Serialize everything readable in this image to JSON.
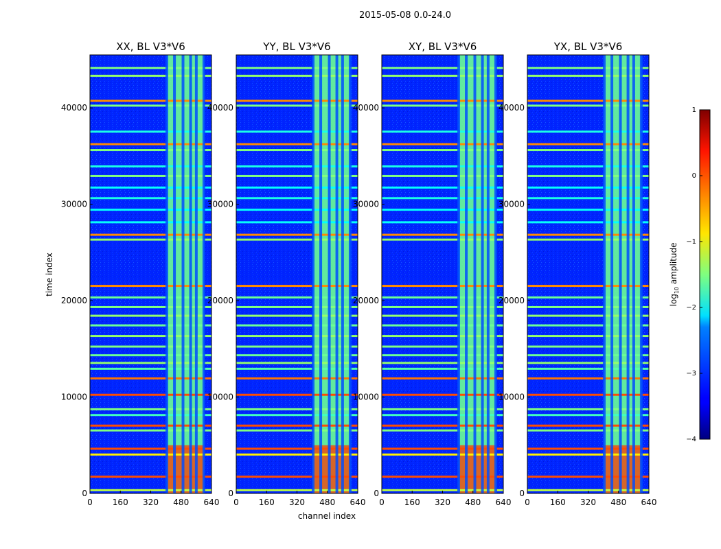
{
  "chart_data": {
    "type": "heatmap",
    "suptitle": "2015-05-08 0.0-24.0",
    "xlabel": "channel index",
    "ylabel": "time index",
    "xlim": [
      0,
      640
    ],
    "ylim": [
      0,
      45500
    ],
    "x_ticks": [
      0,
      160,
      320,
      480,
      640
    ],
    "y_ticks": [
      0,
      10000,
      20000,
      30000,
      40000
    ],
    "panels": [
      {
        "title": "XX, BL V3*V6",
        "polarization": "XX"
      },
      {
        "title": "YY, BL V3*V6",
        "polarization": "YY"
      },
      {
        "title": "XY, BL V3*V6",
        "polarization": "XY"
      },
      {
        "title": "YX, BL V3*V6",
        "polarization": "YX"
      }
    ],
    "colorbar": {
      "label": "log10 amplitude",
      "range": [
        -4,
        1
      ],
      "ticks": [
        1,
        0,
        -1,
        -2,
        -3,
        -4
      ],
      "tick_labels": [
        "1",
        "0",
        "−1",
        "−2",
        "−3",
        "−4"
      ],
      "colormap": "jet"
    },
    "background_log10_amplitude": -3.2,
    "high_channel_region": {
      "channel_start": 405,
      "channel_end": 600,
      "log10_amplitude": -1.6
    },
    "high_channel_stripes": [
      405,
      445,
      490,
      530,
      560,
      600
    ],
    "bright_low_time_region": {
      "time_start": 0,
      "time_end": 5000,
      "log10_amplitude": 0.1
    },
    "rfi_time_bands": [
      {
        "time": 300,
        "log10_amplitude": -1.2
      },
      {
        "time": 1700,
        "log10_amplitude": 0.0
      },
      {
        "time": 4000,
        "log10_amplitude": -0.8
      },
      {
        "time": 4600,
        "log10_amplitude": 0.0
      },
      {
        "time": 6500,
        "log10_amplitude": -1.5
      },
      {
        "time": 7000,
        "log10_amplitude": 0.0
      },
      {
        "time": 8100,
        "log10_amplitude": -1.8
      },
      {
        "time": 8700,
        "log10_amplitude": -1.5
      },
      {
        "time": 10200,
        "log10_amplitude": 0.0
      },
      {
        "time": 11900,
        "log10_amplitude": -0.2
      },
      {
        "time": 12900,
        "log10_amplitude": -1.7
      },
      {
        "time": 13500,
        "log10_amplitude": -1.4
      },
      {
        "time": 14300,
        "log10_amplitude": -1.6
      },
      {
        "time": 15200,
        "log10_amplitude": -1.5
      },
      {
        "time": 16300,
        "log10_amplitude": -1.4
      },
      {
        "time": 17400,
        "log10_amplitude": -1.6
      },
      {
        "time": 18400,
        "log10_amplitude": -1.4
      },
      {
        "time": 19300,
        "log10_amplitude": -1.5
      },
      {
        "time": 20300,
        "log10_amplitude": -1.6
      },
      {
        "time": 21500,
        "log10_amplitude": -0.3
      },
      {
        "time": 26300,
        "log10_amplitude": -1.4
      },
      {
        "time": 26800,
        "log10_amplitude": -0.3
      },
      {
        "time": 28100,
        "log10_amplitude": -2.1
      },
      {
        "time": 29400,
        "log10_amplitude": -2.1
      },
      {
        "time": 30600,
        "log10_amplitude": -2.0
      },
      {
        "time": 31700,
        "log10_amplitude": -2.1
      },
      {
        "time": 32900,
        "log10_amplitude": -1.5
      },
      {
        "time": 33900,
        "log10_amplitude": -2.0
      },
      {
        "time": 35600,
        "log10_amplitude": -1.5
      },
      {
        "time": 36200,
        "log10_amplitude": -0.3
      },
      {
        "time": 37500,
        "log10_amplitude": -2.0
      },
      {
        "time": 40200,
        "log10_amplitude": -1.5
      },
      {
        "time": 40700,
        "log10_amplitude": -0.3
      },
      {
        "time": 43300,
        "log10_amplitude": -1.4
      },
      {
        "time": 44100,
        "log10_amplitude": -1.5
      }
    ]
  }
}
